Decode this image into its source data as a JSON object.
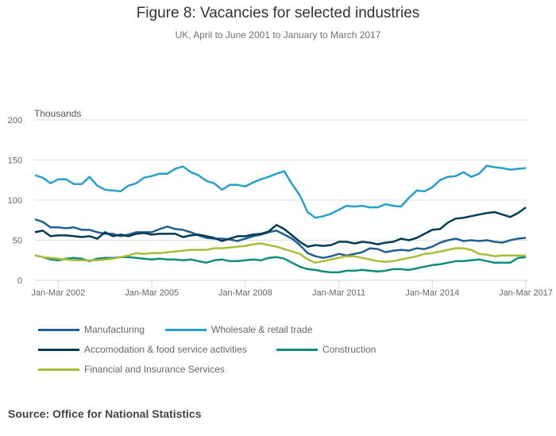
{
  "title": "Figure 8: Vacancies for selected industries",
  "subtitle": "UK, April to June 2001 to January to March 2017",
  "source": "Source: Office for National Statistics",
  "chart_data": {
    "type": "line",
    "title": "Figure 8: Vacancies for selected industries",
    "subtitle": "UK, April to June 2001 to January to March 2017",
    "xlabel": "",
    "ylabel": "Thousands",
    "ylim": [
      0,
      200
    ],
    "yticks": [
      "0",
      "50",
      "100",
      "150",
      "200"
    ],
    "ytick_values": [
      0,
      50,
      100,
      150,
      200
    ],
    "xrange": [
      "Apr-Jun 2001",
      "Jan-Mar 2017"
    ],
    "xticks": [
      "Jan-Mar 2002",
      "Jan-Mar 2005",
      "Jan-Mar 2008",
      "Jan-Mar 2011",
      "Jan-Mar 2014",
      "Jan-Mar 2017"
    ],
    "xtick_index": [
      3,
      15,
      27,
      39,
      51,
      63
    ],
    "grid": true,
    "legend_position": "bottom",
    "series": [
      {
        "name": "Manufacturing",
        "color": "#206095",
        "values": [
          76,
          73,
          66,
          66,
          65,
          66,
          63,
          63,
          60,
          58,
          58,
          55,
          57,
          60,
          60,
          60,
          64,
          67,
          64,
          63,
          60,
          56,
          53,
          52,
          52,
          51,
          49,
          52,
          55,
          57,
          60,
          62,
          57,
          52,
          44,
          34,
          30,
          28,
          30,
          33,
          31,
          33,
          35,
          40,
          39,
          35,
          37,
          38,
          37,
          40,
          39,
          42,
          47,
          50,
          52,
          49,
          50,
          49,
          50,
          48,
          47,
          50,
          52,
          53
        ]
      },
      {
        "name": "Wholesale & retail trade",
        "color": "#27a0cc",
        "values": [
          131,
          128,
          121,
          126,
          126,
          120,
          120,
          129,
          118,
          113,
          112,
          111,
          118,
          121,
          128,
          130,
          133,
          133,
          139,
          142,
          135,
          131,
          124,
          121,
          113,
          119,
          119,
          117,
          122,
          126,
          129,
          133,
          136,
          120,
          106,
          85,
          78,
          80,
          83,
          88,
          93,
          92,
          93,
          91,
          91,
          95,
          93,
          92,
          103,
          112,
          111,
          116,
          125,
          129,
          130,
          135,
          129,
          133,
          143,
          141,
          140,
          138,
          139,
          140
        ]
      },
      {
        "name": "Accomodation & food service activities",
        "color": "#003c57",
        "values": [
          60,
          62,
          55,
          56,
          56,
          55,
          54,
          55,
          52,
          60,
          55,
          57,
          55,
          58,
          59,
          57,
          58,
          58,
          58,
          54,
          56,
          57,
          55,
          53,
          49,
          52,
          55,
          55,
          57,
          58,
          61,
          69,
          64,
          56,
          48,
          42,
          44,
          43,
          44,
          48,
          48,
          46,
          48,
          47,
          45,
          47,
          48,
          52,
          50,
          53,
          58,
          63,
          64,
          72,
          77,
          78,
          80,
          82,
          84,
          85,
          82,
          79,
          84,
          91
        ]
      },
      {
        "name": "Construction",
        "color": "#118c7b",
        "values": [
          31,
          29,
          26,
          25,
          27,
          28,
          27,
          24,
          27,
          28,
          28,
          29,
          29,
          28,
          27,
          26,
          27,
          26,
          26,
          25,
          26,
          24,
          22,
          25,
          26,
          24,
          24,
          25,
          26,
          25,
          28,
          29,
          27,
          22,
          17,
          14,
          13,
          11,
          10,
          10,
          12,
          12,
          13,
          12,
          11,
          12,
          14,
          14,
          13,
          15,
          17,
          19,
          20,
          22,
          24,
          24,
          25,
          26,
          24,
          22,
          22,
          22,
          28,
          29
        ]
      },
      {
        "name": "Financial and Insurance Services",
        "color": "#a8bd3a",
        "values": [
          31,
          29,
          28,
          27,
          26,
          25,
          25,
          25,
          25,
          26,
          27,
          29,
          31,
          34,
          33,
          34,
          34,
          35,
          36,
          37,
          38,
          38,
          38,
          40,
          40,
          41,
          42,
          43,
          45,
          46,
          44,
          42,
          39,
          36,
          33,
          26,
          22,
          24,
          26,
          28,
          30,
          30,
          28,
          26,
          24,
          23,
          24,
          26,
          28,
          30,
          33,
          34,
          36,
          38,
          40,
          40,
          38,
          33,
          32,
          30,
          31,
          31,
          31,
          31
        ]
      }
    ]
  }
}
